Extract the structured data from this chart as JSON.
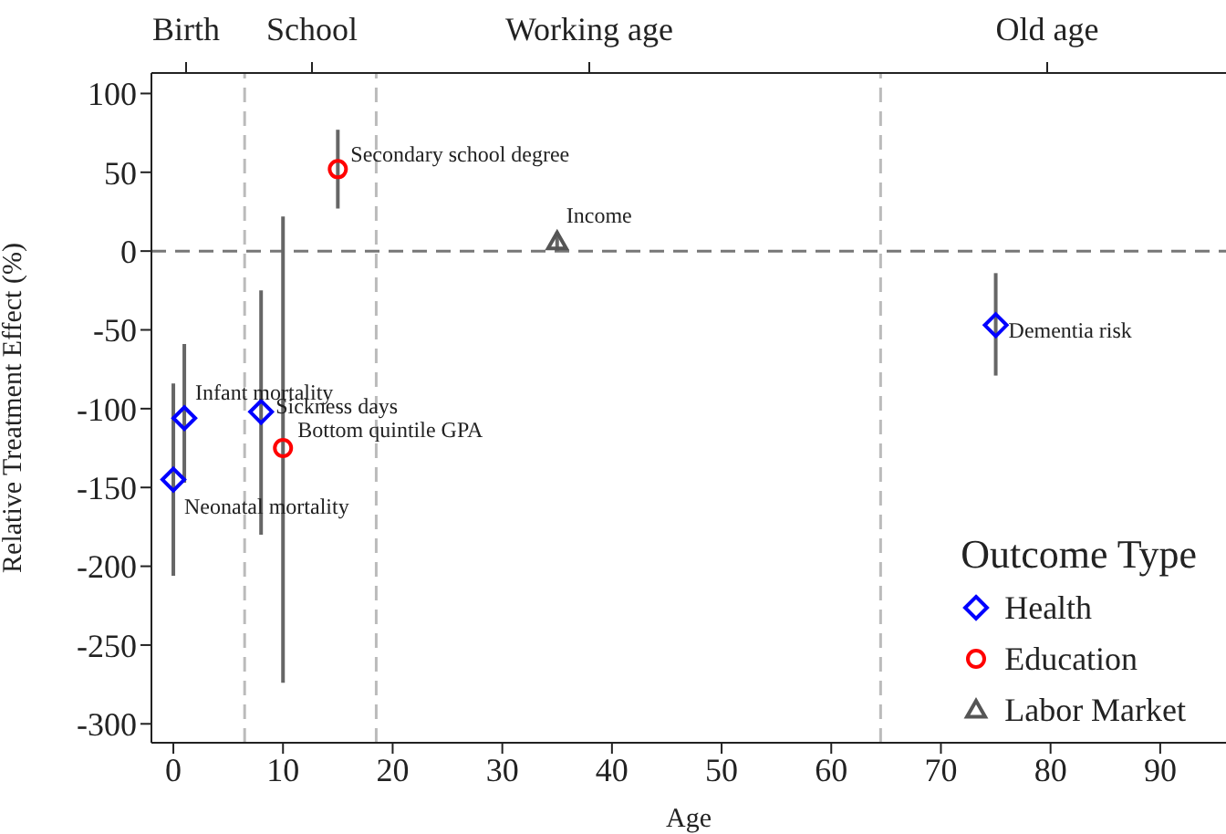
{
  "chart_data": {
    "type": "scatter",
    "xlabel": "Age",
    "ylabel": "Relative Treatment Effect (%)",
    "legend_title": "Outcome Type",
    "legend": "bottom right",
    "grid": false,
    "xlim": [
      -2,
      96
    ],
    "xticks": [
      0,
      10,
      20,
      30,
      40,
      50,
      60,
      70,
      80,
      90
    ],
    "ylim": [
      -312,
      113
    ],
    "yticks": [
      100,
      50,
      0,
      -50,
      -100,
      -150,
      -200,
      -250,
      -300
    ],
    "series": [
      {
        "name": "Health",
        "color": "#0000ff",
        "marker": "diamond",
        "x": [
          0,
          1,
          8,
          75
        ],
        "values": [
          -145,
          -106,
          -102,
          -47
        ],
        "errors": [
          [
            -206,
            -84
          ],
          [
            -147,
            -59
          ],
          [
            -180,
            -25
          ],
          [
            -79,
            -14
          ]
        ]
      },
      {
        "name": "Education",
        "color": "#ff0000",
        "marker": "circle",
        "x": [
          10,
          15
        ],
        "values": [
          -125,
          52
        ],
        "errors": [
          [
            -274,
            22
          ],
          [
            27,
            77
          ]
        ]
      },
      {
        "name": "Labor Market",
        "color": "#555555",
        "marker": "triangle",
        "x": [
          35
        ],
        "values": [
          6
        ],
        "errors": [
          [
            0,
            12
          ]
        ]
      }
    ],
    "ref_lines": [
      {
        "axis": "y",
        "value": 0,
        "color": "#777777",
        "line_style": "dashed"
      },
      {
        "axis": "x",
        "value": 6.5,
        "color": "#bbbbbb",
        "line_style": "dashed"
      },
      {
        "axis": "x",
        "value": 18.5,
        "color": "#bbbbbb",
        "line_style": "dashed"
      },
      {
        "axis": "x",
        "value": 64.5,
        "color": "#bbbbbb",
        "line_style": "dashed"
      }
    ],
    "annotations": [
      "Birth",
      "School",
      "Working age",
      "Old age",
      {
        "text": "Neonatal mortality",
        "x": 0,
        "y": -145
      },
      {
        "text": "Infant mortality",
        "x": 1,
        "y": -106
      },
      {
        "text": "Sickness days",
        "x": 8,
        "y": -102
      },
      {
        "text": "Bottom quintile GPA",
        "x": 10,
        "y": -125
      },
      {
        "text": "Secondary school degree",
        "x": 15,
        "y": 52
      },
      {
        "text": "Income",
        "x": 35,
        "y": 6
      },
      {
        "text": "Dementia risk",
        "x": 75,
        "y": -47
      }
    ]
  }
}
